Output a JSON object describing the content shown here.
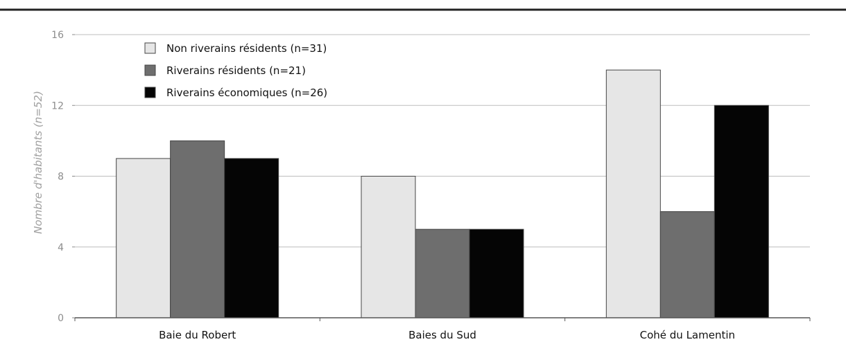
{
  "chart_data": {
    "type": "bar",
    "title": "",
    "xlabel": "",
    "ylabel": "Nombre d'habitants (n=52)",
    "ylim": [
      0,
      16
    ],
    "yticks": [
      0,
      4,
      8,
      12,
      16
    ],
    "grid": true,
    "legend_position": "top-left",
    "categories": [
      "Baie du Robert",
      "Baies du Sud",
      "Cohé du Lamentin"
    ],
    "series": [
      {
        "name": "Non riverains résidents (n=31)",
        "values": [
          9,
          8,
          14
        ],
        "color": "#e6e6e6"
      },
      {
        "name": "Riverains résidents (n=21)",
        "values": [
          10,
          5,
          6
        ],
        "color": "#6e6e6e"
      },
      {
        "name": "Riverains économiques (n=26)",
        "values": [
          9,
          5,
          12
        ],
        "color": "#050505"
      }
    ]
  }
}
